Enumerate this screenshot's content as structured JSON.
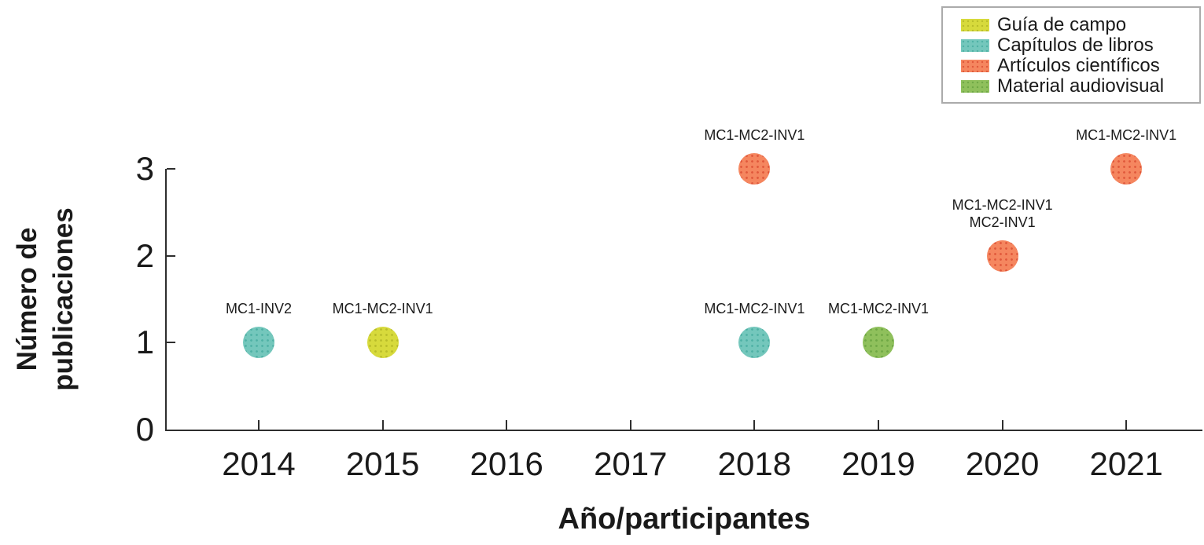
{
  "figure": {
    "background": "#ffffff",
    "text_color": "#1a1a1a",
    "axis_color": "#2e2e2e"
  },
  "chart_data": {
    "type": "scatter",
    "title": "",
    "xlabel": "Año/participantes",
    "ylabel": "Número de publicaciones",
    "ylabel_lines": [
      "Número de",
      "publicaciones"
    ],
    "x_ticks": [
      2014,
      2015,
      2016,
      2017,
      2018,
      2019,
      2020,
      2021
    ],
    "y_ticks": [
      0,
      1,
      2,
      3
    ],
    "xlim": [
      2013.25,
      2021.6
    ],
    "ylim": [
      0,
      3
    ],
    "grid": false,
    "legend": {
      "position": "top-right",
      "border_color": "#ababab",
      "items": [
        {
          "label": "Guía de campo",
          "color": "#d7da3c",
          "stipple": "#b9bd2a"
        },
        {
          "label": "Capítulos de libros",
          "color": "#74c7bc",
          "stipple": "#4fb1a5"
        },
        {
          "label": "Artículos científicos",
          "color": "#f5865f",
          "stipple": "#e0583a"
        },
        {
          "label": "Material audiovisual",
          "color": "#8fc05c",
          "stipple": "#6fa845"
        }
      ]
    },
    "points": [
      {
        "x": 2014,
        "y": 1,
        "series": "Capítulos de libros",
        "labels": [
          "MC1-INV2"
        ]
      },
      {
        "x": 2015,
        "y": 1,
        "series": "Guía de campo",
        "labels": [
          "MC1-MC2-INV1"
        ]
      },
      {
        "x": 2018,
        "y": 3,
        "series": "Artículos científicos",
        "labels": [
          "MC1-MC2-INV1"
        ]
      },
      {
        "x": 2018,
        "y": 1,
        "series": "Capítulos de libros",
        "labels": [
          "MC1-MC2-INV1"
        ]
      },
      {
        "x": 2019,
        "y": 1,
        "series": "Material audiovisual",
        "labels": [
          "MC1-MC2-INV1"
        ]
      },
      {
        "x": 2020,
        "y": 2,
        "series": "Artículos científicos",
        "labels": [
          "MC1-MC2-INV1",
          "MC2-INV1"
        ]
      },
      {
        "x": 2021,
        "y": 3,
        "series": "Artículos científicos",
        "labels": [
          "MC1-MC2-INV1"
        ]
      }
    ]
  }
}
